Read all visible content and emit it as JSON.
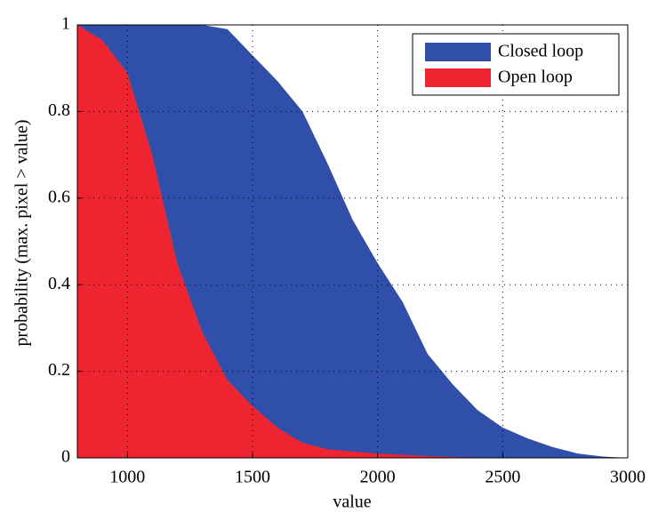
{
  "chart_data": {
    "type": "area",
    "x": [
      800,
      900,
      1000,
      1100,
      1200,
      1300,
      1400,
      1500,
      1600,
      1700,
      1800,
      1900,
      2000,
      2100,
      2200,
      2300,
      2400,
      2500,
      2600,
      2700,
      2800,
      2900,
      3000
    ],
    "series": [
      {
        "name": "Closed loop",
        "color": "#2f4faa",
        "values": [
          1,
          1,
          1,
          1,
          1,
          1,
          0.99,
          0.93,
          0.87,
          0.8,
          0.68,
          0.55,
          0.45,
          0.36,
          0.24,
          0.17,
          0.11,
          0.07,
          0.045,
          0.025,
          0.01,
          0.003,
          0
        ]
      },
      {
        "name": "Open loop",
        "color": "#ee2530",
        "values": [
          1,
          0.965,
          0.89,
          0.7,
          0.45,
          0.29,
          0.18,
          0.12,
          0.07,
          0.035,
          0.02,
          0.015,
          0.01,
          0.007,
          0.004,
          0.002,
          0.001,
          0,
          0,
          0,
          0,
          0,
          0
        ]
      }
    ],
    "xlabel": "value",
    "ylabel": "probability (max. pixel > value)",
    "xlim": [
      800,
      3000
    ],
    "xticks": [
      1000,
      1500,
      2000,
      2500,
      3000
    ],
    "ylim": [
      0,
      1
    ],
    "yticks": [
      0,
      0.2,
      0.4,
      0.6,
      0.8,
      1
    ],
    "grid": true,
    "legend": "upper right"
  }
}
